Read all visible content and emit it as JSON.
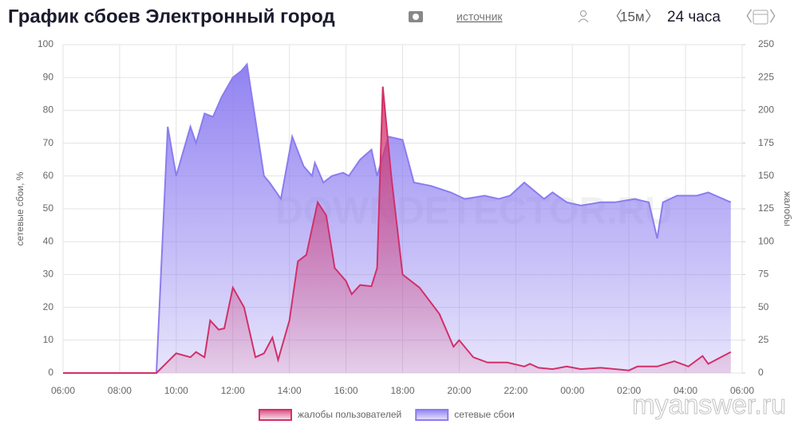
{
  "chart_data": {
    "type": "area",
    "title": "График сбоев Электронный город",
    "source_link": "источник",
    "interval": "15м",
    "period": "24 часа",
    "y_label": "сетевые сбои, %",
    "y2_label": "жалобы",
    "watermarks": [
      "DOWNDETECTOR.RU",
      "myanswer.ru"
    ],
    "xlim": [
      6,
      30
    ],
    "xticks": [
      {
        "value": 6,
        "label": "06:00"
      },
      {
        "value": 8,
        "label": "08:00"
      },
      {
        "value": 10,
        "label": "10:00"
      },
      {
        "value": 12,
        "label": "12:00"
      },
      {
        "value": 14,
        "label": "14:00"
      },
      {
        "value": 16,
        "label": "16:00"
      },
      {
        "value": 18,
        "label": "18:00"
      },
      {
        "value": 20,
        "label": "20:00"
      },
      {
        "value": 22,
        "label": "22:00"
      },
      {
        "value": 24,
        "label": "00:00"
      },
      {
        "value": 26,
        "label": "02:00"
      },
      {
        "value": 28,
        "label": "04:00"
      },
      {
        "value": 30,
        "label": "06:00"
      }
    ],
    "ylim": [
      0,
      100
    ],
    "yticks": [
      0,
      10,
      20,
      30,
      40,
      50,
      60,
      70,
      80,
      90,
      100
    ],
    "y2lim": [
      0,
      250
    ],
    "y2ticks": [
      0,
      25,
      50,
      75,
      100,
      125,
      150,
      175,
      200,
      225,
      250
    ],
    "grid": true,
    "legend": "bottom",
    "series": [
      {
        "name": "жалобы пользователей",
        "color": "#d1306a",
        "axis": "y2",
        "x": [
          6,
          9.3,
          10,
          10.5,
          10.7,
          11,
          11.2,
          11.5,
          11.7,
          12,
          12.4,
          12.8,
          13.1,
          13.4,
          13.6,
          14,
          14.3,
          14.6,
          15,
          15.3,
          15.6,
          16,
          16.2,
          16.5,
          16.9,
          17.1,
          17.3,
          17.6,
          18,
          18.6,
          19.3,
          19.8,
          20,
          20.5,
          21,
          21.7,
          22.3,
          22.5,
          22.8,
          23.3,
          23.8,
          24.3,
          25,
          26,
          26.3,
          27,
          27.6,
          28.1,
          28.6,
          28.8,
          29.6
        ],
        "values": [
          0,
          0,
          15,
          12,
          16,
          12,
          40,
          33,
          34,
          65,
          50,
          12,
          15,
          27,
          10,
          40,
          85,
          90,
          130,
          120,
          80,
          70,
          60,
          67,
          66,
          80,
          218,
          150,
          75,
          65,
          45,
          20,
          25,
          12,
          8,
          8,
          5,
          7,
          4,
          3,
          5,
          3,
          4,
          2,
          5,
          5,
          9,
          5,
          13,
          7,
          16
        ]
      },
      {
        "name": "сетевые сбои",
        "color": "#8b7cf0",
        "axis": "y",
        "x": [
          6,
          9.3,
          9.7,
          10,
          10.5,
          10.7,
          11,
          11.3,
          11.6,
          12,
          12.3,
          12.5,
          13.1,
          13.3,
          13.7,
          14.1,
          14.5,
          14.8,
          14.9,
          15.2,
          15.5,
          15.9,
          16.1,
          16.5,
          16.9,
          17.1,
          17.5,
          18,
          18.4,
          19,
          19.7,
          20.2,
          20.9,
          21.4,
          21.8,
          22.3,
          23,
          23.3,
          23.8,
          24.3,
          25,
          25.5,
          26.2,
          26.7,
          27,
          27.2,
          27.7,
          28.4,
          28.8,
          29.6
        ],
        "values": [
          0,
          0,
          75,
          60,
          75,
          70,
          79,
          78,
          84,
          90,
          92,
          94,
          60,
          58,
          53,
          72,
          63,
          60,
          64,
          58,
          60,
          61,
          60,
          65,
          68,
          60,
          72,
          71,
          58,
          57,
          55,
          53,
          54,
          53,
          54,
          58,
          53,
          55,
          52,
          51,
          52,
          52,
          53,
          52,
          41,
          52,
          54,
          54,
          55,
          52
        ]
      }
    ]
  }
}
